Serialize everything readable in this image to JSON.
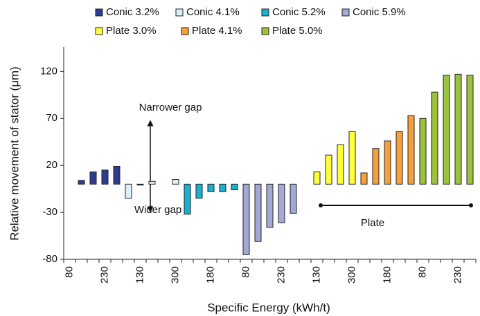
{
  "chart_data": {
    "type": "bar",
    "xlabel": "Specific Energy (kWh/t)",
    "ylabel": "Relative movement of stator (μm)",
    "categories": [
      "80",
      null,
      null,
      "230",
      null,
      null,
      "130",
      null,
      null,
      "300",
      null,
      null,
      "180",
      null,
      null,
      "80",
      null,
      null,
      "230",
      null,
      null,
      "130",
      null,
      null,
      "300",
      null,
      null,
      "180",
      null,
      null,
      "80",
      null,
      null,
      "230",
      null
    ],
    "ylim": [
      -80,
      146
    ],
    "yticks": [
      -80,
      -30,
      20,
      70,
      120
    ],
    "series": [
      {
        "name": "Conic 3.2%",
        "color": "#2e3d8f",
        "values": [
          null,
          4,
          13,
          15,
          19,
          null,
          -1,
          null,
          null,
          null,
          null,
          null,
          null,
          null,
          null,
          null,
          null,
          null,
          null,
          null,
          null,
          null,
          null,
          null,
          null,
          null,
          null,
          null,
          null,
          null,
          null,
          null,
          null,
          null,
          null
        ]
      },
      {
        "name": "Conic 4.1%",
        "color": "#d9f1f7",
        "values": [
          null,
          null,
          null,
          null,
          null,
          -15,
          null,
          3,
          null,
          5,
          null,
          null,
          null,
          null,
          null,
          null,
          null,
          null,
          null,
          null,
          null,
          null,
          null,
          null,
          null,
          null,
          null,
          null,
          null,
          null,
          null,
          null,
          null,
          null,
          null
        ]
      },
      {
        "name": "Conic 5.2%",
        "color": "#1ab0d0",
        "values": [
          null,
          null,
          null,
          null,
          null,
          null,
          null,
          null,
          null,
          null,
          -32,
          -15,
          -8,
          -8,
          -6,
          null,
          null,
          null,
          null,
          null,
          null,
          null,
          null,
          null,
          null,
          null,
          null,
          null,
          null,
          null,
          null,
          null,
          null,
          null,
          null
        ]
      },
      {
        "name": "Conic 5.9%",
        "color": "#a3a8d6",
        "values": [
          null,
          null,
          null,
          null,
          null,
          null,
          null,
          null,
          null,
          null,
          null,
          null,
          null,
          null,
          null,
          -75,
          -61,
          -46,
          -41,
          -31,
          null,
          null,
          null,
          null,
          null,
          null,
          null,
          null,
          null,
          null,
          null,
          null,
          null,
          null,
          null
        ]
      },
      {
        "name": "Plate 3.0%",
        "color": "#ffff3c",
        "values": [
          null,
          null,
          null,
          null,
          null,
          null,
          null,
          null,
          null,
          null,
          null,
          null,
          null,
          null,
          null,
          null,
          null,
          null,
          null,
          null,
          null,
          13,
          31,
          42,
          56,
          null,
          null,
          null,
          null,
          null,
          null,
          null,
          null,
          null,
          null
        ]
      },
      {
        "name": "Plate 4.1%",
        "color": "#f5a03a",
        "values": [
          null,
          null,
          null,
          null,
          null,
          null,
          null,
          null,
          null,
          null,
          null,
          null,
          null,
          null,
          null,
          null,
          null,
          null,
          null,
          null,
          null,
          null,
          null,
          null,
          null,
          12,
          38,
          46,
          56,
          73,
          null,
          null,
          null,
          null,
          null
        ]
      },
      {
        "name": "Plate 5.0%",
        "color": "#9bc23c",
        "values": [
          null,
          null,
          null,
          null,
          null,
          null,
          null,
          null,
          null,
          null,
          null,
          null,
          null,
          null,
          null,
          null,
          null,
          null,
          null,
          null,
          null,
          null,
          null,
          null,
          null,
          null,
          null,
          null,
          null,
          null,
          70,
          98,
          116,
          117,
          116
        ]
      }
    ],
    "annotations": [
      "Narrower gap",
      "Wider gap",
      "Plate"
    ]
  }
}
